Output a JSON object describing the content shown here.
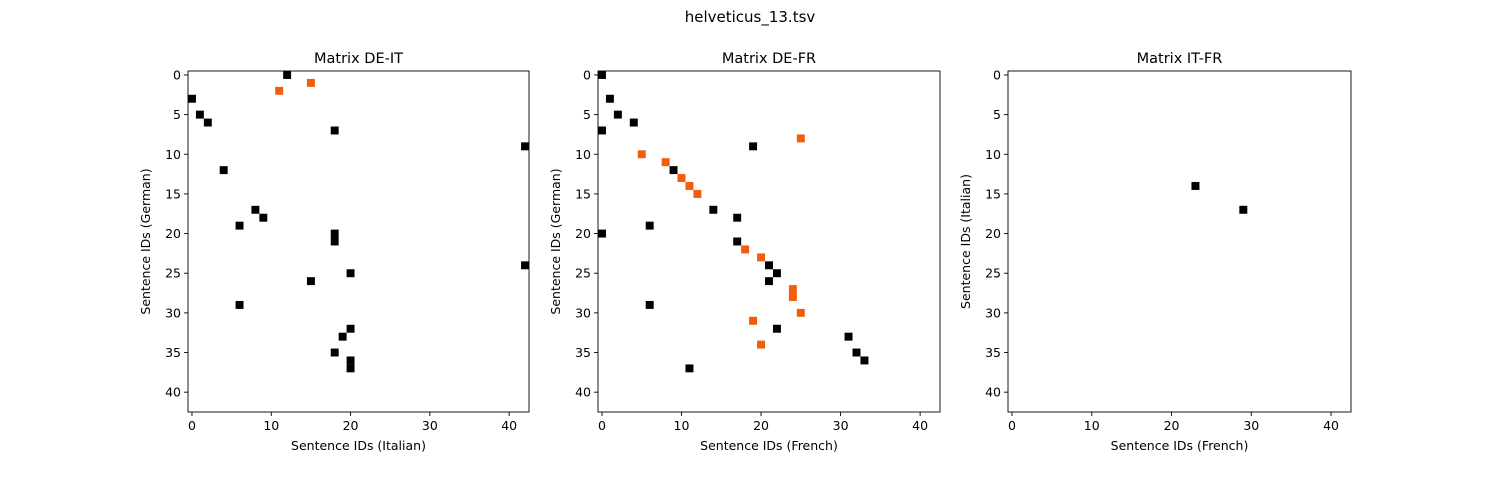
{
  "figure": {
    "suptitle": "helveticus_13.tsv"
  },
  "colors": {
    "black": "#000000",
    "orange": "#f25c0a",
    "axis": "#000000",
    "background": "#ffffff"
  },
  "chart_data": [
    {
      "type": "heatmap",
      "title": "Matrix DE-IT",
      "xlabel": "Sentence IDs (Italian)",
      "ylabel": "Sentence IDs (German)",
      "xlim": [
        -0.5,
        42.5
      ],
      "ylim": [
        42.5,
        -0.5
      ],
      "xticks": [
        0,
        10,
        20,
        30,
        40
      ],
      "yticks": [
        0,
        5,
        10,
        15,
        20,
        25,
        30,
        35,
        40
      ],
      "cells": {
        "black": [
          [
            12,
            0
          ],
          [
            0,
            3
          ],
          [
            1,
            5
          ],
          [
            2,
            6
          ],
          [
            18,
            7
          ],
          [
            42,
            9
          ],
          [
            4,
            12
          ],
          [
            8,
            17
          ],
          [
            9,
            18
          ],
          [
            6,
            19
          ],
          [
            18,
            20
          ],
          [
            18,
            21
          ],
          [
            42,
            24
          ],
          [
            20,
            25
          ],
          [
            15,
            26
          ],
          [
            6,
            29
          ],
          [
            20,
            32
          ],
          [
            19,
            33
          ],
          [
            18,
            35
          ],
          [
            20,
            36
          ],
          [
            20,
            37
          ]
        ],
        "orange": [
          [
            15,
            1
          ],
          [
            11,
            2
          ]
        ]
      }
    },
    {
      "type": "heatmap",
      "title": "Matrix DE-FR",
      "xlabel": "Sentence IDs (French)",
      "ylabel": "Sentence IDs (German)",
      "xlim": [
        -0.5,
        42.5
      ],
      "ylim": [
        42.5,
        -0.5
      ],
      "xticks": [
        0,
        10,
        20,
        30,
        40
      ],
      "yticks": [
        0,
        5,
        10,
        15,
        20,
        25,
        30,
        35,
        40
      ],
      "cells": {
        "black": [
          [
            0,
            0
          ],
          [
            1,
            3
          ],
          [
            2,
            5
          ],
          [
            4,
            6
          ],
          [
            0,
            7
          ],
          [
            19,
            9
          ],
          [
            9,
            12
          ],
          [
            14,
            17
          ],
          [
            17,
            18
          ],
          [
            6,
            19
          ],
          [
            0,
            20
          ],
          [
            17,
            21
          ],
          [
            21,
            24
          ],
          [
            22,
            25
          ],
          [
            21,
            26
          ],
          [
            6,
            29
          ],
          [
            22,
            32
          ],
          [
            31,
            33
          ],
          [
            32,
            35
          ],
          [
            33,
            36
          ],
          [
            11,
            37
          ]
        ],
        "orange": [
          [
            25,
            8
          ],
          [
            5,
            10
          ],
          [
            8,
            11
          ],
          [
            10,
            13
          ],
          [
            11,
            14
          ],
          [
            12,
            15
          ],
          [
            18,
            22
          ],
          [
            20,
            23
          ],
          [
            24,
            27
          ],
          [
            24,
            28
          ],
          [
            25,
            30
          ],
          [
            19,
            31
          ],
          [
            20,
            34
          ]
        ]
      }
    },
    {
      "type": "heatmap",
      "title": "Matrix IT-FR",
      "xlabel": "Sentence IDs (French)",
      "ylabel": "Sentence IDs (Italian)",
      "xlim": [
        -0.5,
        42.5
      ],
      "ylim": [
        42.5,
        -0.5
      ],
      "xticks": [
        0,
        10,
        20,
        30,
        40
      ],
      "yticks": [
        0,
        5,
        10,
        15,
        20,
        25,
        30,
        35,
        40
      ],
      "cells": {
        "black": [
          [
            23,
            14
          ],
          [
            29,
            17
          ]
        ],
        "orange": []
      }
    }
  ]
}
